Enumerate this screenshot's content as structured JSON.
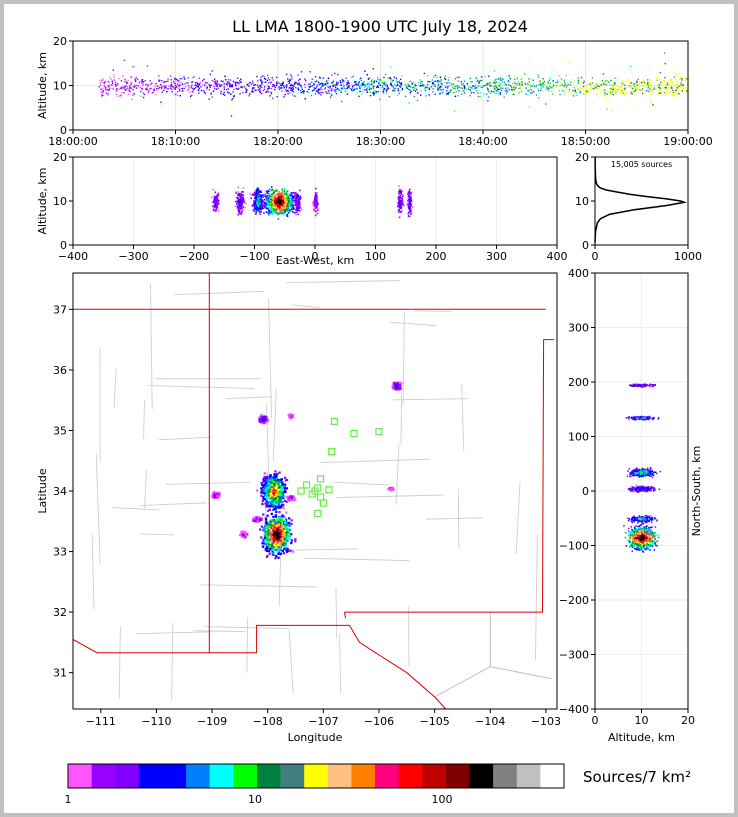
{
  "chart_data": {
    "type": "scatter",
    "title": "LL LMA 1800-1900 UTC July 18, 2024",
    "time_height": {
      "ylabel": "Altitude, km",
      "ylim": [
        0,
        20
      ],
      "yticks": [
        "0",
        "10",
        "20"
      ],
      "xticks": [
        "18:00:00",
        "18:10:00",
        "18:20:00",
        "18:30:00",
        "18:40:00",
        "18:50:00",
        "19:00:00"
      ],
      "xlim_minutes": [
        0,
        60
      ]
    },
    "ew_height": {
      "ylabel": "Altitude, km",
      "xlabel": "East-West, km",
      "xlim": [
        -400,
        400
      ],
      "ylim": [
        0,
        20
      ],
      "xticks": [
        "−400",
        "−300",
        "−200",
        "−100",
        "0",
        "100",
        "200",
        "300",
        "400"
      ],
      "yticks": [
        "0",
        "10",
        "20"
      ]
    },
    "histogram": {
      "annotation": "15,005 sources",
      "xlim": [
        0,
        1000
      ],
      "ylim": [
        0,
        20
      ],
      "xticks": [
        "0",
        "1000"
      ],
      "yticks": [
        "0",
        "10",
        "20"
      ],
      "profile": [
        [
          0.5,
          0
        ],
        [
          3,
          5
        ],
        [
          5,
          25
        ],
        [
          6,
          60
        ],
        [
          7,
          160
        ],
        [
          8,
          420
        ],
        [
          9,
          780
        ],
        [
          9.7,
          960
        ],
        [
          10,
          920
        ],
        [
          10.5,
          760
        ],
        [
          11,
          560
        ],
        [
          11.5,
          380
        ],
        [
          12,
          250
        ],
        [
          12.5,
          120
        ],
        [
          13,
          55
        ],
        [
          13.5,
          28
        ],
        [
          14,
          15
        ],
        [
          15,
          6
        ],
        [
          17,
          3
        ],
        [
          20,
          1
        ]
      ]
    },
    "plan_view": {
      "xlabel": "Longitude",
      "ylabel": "Latitude",
      "xlim": [
        -111.5,
        -102.8
      ],
      "ylim": [
        30.4,
        37.6
      ],
      "xticks": [
        "−111",
        "−110",
        "−109",
        "−108",
        "−107",
        "−106",
        "−105",
        "−104",
        "−103"
      ],
      "yticks": [
        "31",
        "32",
        "33",
        "34",
        "35",
        "36",
        "37"
      ],
      "stations": [
        [
          -106.8,
          35.15
        ],
        [
          -106.45,
          34.95
        ],
        [
          -106.0,
          34.98
        ],
        [
          -106.85,
          34.65
        ],
        [
          -107.05,
          34.2
        ],
        [
          -107.1,
          34.05
        ],
        [
          -107.3,
          34.1
        ],
        [
          -107.15,
          34.0
        ],
        [
          -106.9,
          34.02
        ],
        [
          -107.05,
          33.9
        ],
        [
          -107.0,
          33.8
        ],
        [
          -107.1,
          33.63
        ],
        [
          -107.4,
          34.0
        ],
        [
          -107.2,
          33.95
        ]
      ],
      "clusters": [
        [
          -107.85,
          33.3,
          0.35,
          0.45,
          1.0
        ],
        [
          -107.9,
          34.0,
          0.3,
          0.4,
          0.8
        ],
        [
          -108.1,
          35.2,
          0.1,
          0.08,
          0.3
        ],
        [
          -105.7,
          35.75,
          0.1,
          0.08,
          0.3
        ],
        [
          -108.95,
          33.95,
          0.08,
          0.06,
          0.2
        ],
        [
          -108.2,
          33.55,
          0.1,
          0.05,
          0.2
        ],
        [
          -108.45,
          33.3,
          0.08,
          0.06,
          0.15
        ],
        [
          -107.6,
          33.9,
          0.08,
          0.05,
          0.15
        ],
        [
          -107.6,
          35.25,
          0.05,
          0.04,
          0.1
        ],
        [
          -105.8,
          34.05,
          0.06,
          0.03,
          0.1
        ]
      ]
    },
    "ns_height": {
      "ylabel": "North-South, km",
      "xlabel": "Altitude, km",
      "ylim": [
        -400,
        400
      ],
      "xlim": [
        0,
        20
      ],
      "yticks": [
        "400",
        "300",
        "200",
        "100",
        "0",
        "−100",
        "−200",
        "−300",
        "−400"
      ],
      "xticks": [
        "0",
        "10",
        "20"
      ]
    },
    "colorbar": {
      "label": "Sources/7 km²",
      "ticks": [
        "1",
        "10",
        "100"
      ],
      "colors": [
        "#ff55ff",
        "#9900ff",
        "#8000ff",
        "#0000ff",
        "#0000ff",
        "#0080ff",
        "#00ffff",
        "#00ff00",
        "#008040",
        "#408080",
        "#ffff00",
        "#ffc080",
        "#ff8000",
        "#ff0080",
        "#ff0000",
        "#c00000",
        "#800000",
        "#000000",
        "#808080",
        "#c0c0c0",
        "#ffffff"
      ]
    }
  }
}
